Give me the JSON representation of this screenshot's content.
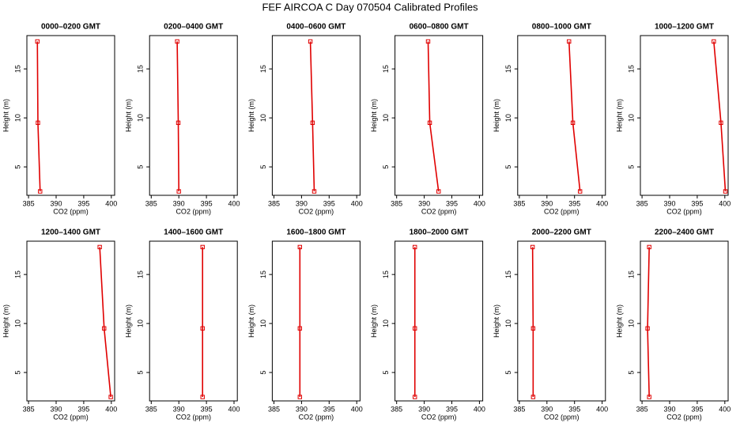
{
  "title": "FEF AIRCOA C  Day 070504  Calibrated Profiles",
  "chart_data": [
    {
      "type": "line",
      "title": "0000–0200 GMT",
      "x_label": "CO2 (ppm)",
      "y_label": "Height (m)",
      "x": [
        387.1,
        386.7,
        386.6
      ],
      "values": [
        2.5,
        9.5,
        17.8
      ],
      "color": "#e00000",
      "xlim": [
        384.7,
        400.6
      ],
      "ylim": [
        2.1,
        18.4
      ],
      "xticks": [
        385,
        390,
        395,
        400
      ],
      "yticks": [
        5,
        10,
        15
      ]
    },
    {
      "type": "line",
      "title": "0200–0400 GMT",
      "x_label": "CO2 (ppm)",
      "y_label": "Height (m)",
      "x": [
        390.0,
        389.9,
        389.7
      ],
      "values": [
        2.5,
        9.5,
        17.8
      ],
      "color": "#e00000",
      "xlim": [
        384.7,
        400.6
      ],
      "ylim": [
        2.1,
        18.4
      ],
      "xticks": [
        385,
        390,
        395,
        400
      ],
      "yticks": [
        5,
        10,
        15
      ]
    },
    {
      "type": "line",
      "title": "0400–0600 GMT",
      "x_label": "CO2 (ppm)",
      "y_label": "Height (m)",
      "x": [
        392.3,
        392.0,
        391.6
      ],
      "values": [
        2.5,
        9.5,
        17.8
      ],
      "color": "#e00000",
      "xlim": [
        384.7,
        400.6
      ],
      "ylim": [
        2.1,
        18.4
      ],
      "xticks": [
        385,
        390,
        395,
        400
      ],
      "yticks": [
        5,
        10,
        15
      ]
    },
    {
      "type": "line",
      "title": "0600–0800 GMT",
      "x_label": "CO2 (ppm)",
      "y_label": "Height (m)",
      "x": [
        392.6,
        391.0,
        390.7
      ],
      "values": [
        2.5,
        9.5,
        17.8
      ],
      "color": "#e00000",
      "xlim": [
        384.7,
        400.6
      ],
      "ylim": [
        2.1,
        18.4
      ],
      "xticks": [
        385,
        390,
        395,
        400
      ],
      "yticks": [
        5,
        10,
        15
      ]
    },
    {
      "type": "line",
      "title": "0800–1000 GMT",
      "x_label": "CO2 (ppm)",
      "y_label": "Height (m)",
      "x": [
        396.0,
        394.7,
        394.0
      ],
      "values": [
        2.5,
        9.5,
        17.8
      ],
      "color": "#e00000",
      "xlim": [
        384.7,
        400.6
      ],
      "ylim": [
        2.1,
        18.4
      ],
      "xticks": [
        385,
        390,
        395,
        400
      ],
      "yticks": [
        5,
        10,
        15
      ]
    },
    {
      "type": "line",
      "title": "1000–1200 GMT",
      "x_label": "CO2 (ppm)",
      "y_label": "Height (m)",
      "x": [
        400.1,
        399.3,
        398.0
      ],
      "values": [
        2.5,
        9.5,
        17.8
      ],
      "color": "#e00000",
      "xlim": [
        384.7,
        400.6
      ],
      "ylim": [
        2.1,
        18.4
      ],
      "xticks": [
        385,
        390,
        395,
        400
      ],
      "yticks": [
        5,
        10,
        15
      ]
    },
    {
      "type": "line",
      "title": "1200–1400 GMT",
      "x_label": "CO2 (ppm)",
      "y_label": "Height (m)",
      "x": [
        399.9,
        398.7,
        397.9
      ],
      "values": [
        2.5,
        9.5,
        17.8
      ],
      "color": "#e00000",
      "xlim": [
        384.7,
        400.6
      ],
      "ylim": [
        2.1,
        18.4
      ],
      "xticks": [
        385,
        390,
        395,
        400
      ],
      "yticks": [
        5,
        10,
        15
      ]
    },
    {
      "type": "line",
      "title": "1400–1600 GMT",
      "x_label": "CO2 (ppm)",
      "y_label": "Height (m)",
      "x": [
        394.3,
        394.3,
        394.3
      ],
      "values": [
        2.5,
        9.5,
        17.8
      ],
      "color": "#e00000",
      "xlim": [
        384.7,
        400.6
      ],
      "ylim": [
        2.1,
        18.4
      ],
      "xticks": [
        385,
        390,
        395,
        400
      ],
      "yticks": [
        5,
        10,
        15
      ]
    },
    {
      "type": "line",
      "title": "1600–1800 GMT",
      "x_label": "CO2 (ppm)",
      "y_label": "Height (m)",
      "x": [
        389.7,
        389.7,
        389.7
      ],
      "values": [
        2.5,
        9.5,
        17.8
      ],
      "color": "#e00000",
      "xlim": [
        384.7,
        400.6
      ],
      "ylim": [
        2.1,
        18.4
      ],
      "xticks": [
        385,
        390,
        395,
        400
      ],
      "yticks": [
        5,
        10,
        15
      ]
    },
    {
      "type": "line",
      "title": "1800–2000 GMT",
      "x_label": "CO2 (ppm)",
      "y_label": "Height (m)",
      "x": [
        388.3,
        388.3,
        388.3
      ],
      "values": [
        2.5,
        9.5,
        17.8
      ],
      "color": "#e00000",
      "xlim": [
        384.7,
        400.6
      ],
      "ylim": [
        2.1,
        18.4
      ],
      "xticks": [
        385,
        390,
        395,
        400
      ],
      "yticks": [
        5,
        10,
        15
      ]
    },
    {
      "type": "line",
      "title": "2000–2200 GMT",
      "x_label": "CO2 (ppm)",
      "y_label": "Height (m)",
      "x": [
        387.5,
        387.5,
        387.4
      ],
      "values": [
        2.5,
        9.5,
        17.8
      ],
      "color": "#e00000",
      "xlim": [
        384.7,
        400.6
      ],
      "ylim": [
        2.1,
        18.4
      ],
      "xticks": [
        385,
        390,
        395,
        400
      ],
      "yticks": [
        5,
        10,
        15
      ]
    },
    {
      "type": "line",
      "title": "2200–2400 GMT",
      "x_label": "CO2 (ppm)",
      "y_label": "Height (m)",
      "x": [
        386.3,
        386.0,
        386.3
      ],
      "values": [
        2.5,
        9.5,
        17.8
      ],
      "color": "#e00000",
      "xlim": [
        384.7,
        400.6
      ],
      "ylim": [
        2.1,
        18.4
      ],
      "xticks": [
        385,
        390,
        395,
        400
      ],
      "yticks": [
        5,
        10,
        15
      ]
    }
  ]
}
